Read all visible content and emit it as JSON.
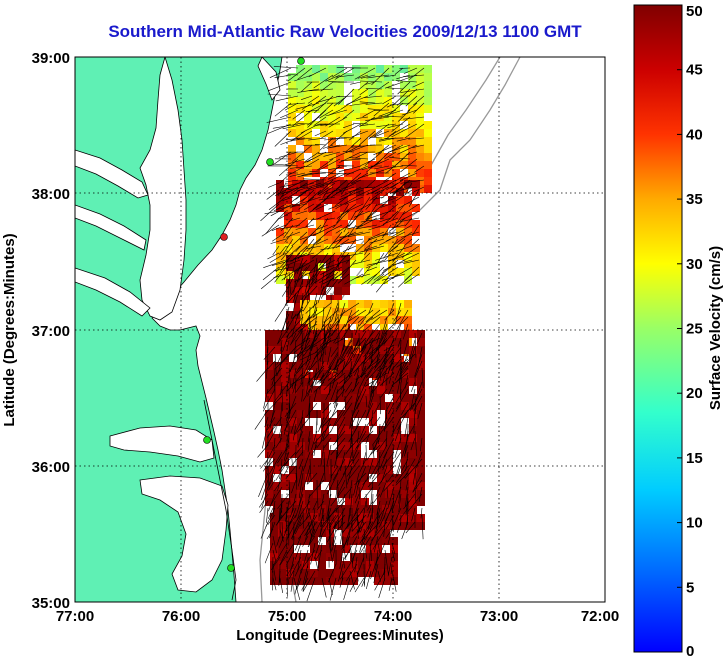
{
  "title": "Southern Mid-Atlantic Raw Velocities 2009/12/13 1100 GMT",
  "map": {
    "xlabel": "Longitude (Degrees:Minutes)",
    "ylabel": "Latitude (Degrees:Minutes)",
    "x_ticks": [
      "77:00",
      "76:00",
      "75:00",
      "74:00",
      "73:00",
      "72:00"
    ],
    "y_ticks": [
      "39:00",
      "38:00",
      "37:00",
      "36:00",
      "35:00"
    ],
    "lon_range": [
      -77,
      -72
    ],
    "lat_range": [
      35,
      39
    ],
    "grid": true,
    "land_color": "#5ff0b4",
    "arrow_color": "#000000",
    "marker_colors": [
      "#22dd22",
      "#dd2222"
    ]
  },
  "colorbar": {
    "label": "Surface Velocity (cm/s)",
    "ticks": [
      "0",
      "5",
      "10",
      "15",
      "20",
      "25",
      "30",
      "35",
      "40",
      "45",
      "50"
    ],
    "range": [
      0,
      50
    ],
    "colormap": "jet"
  }
}
